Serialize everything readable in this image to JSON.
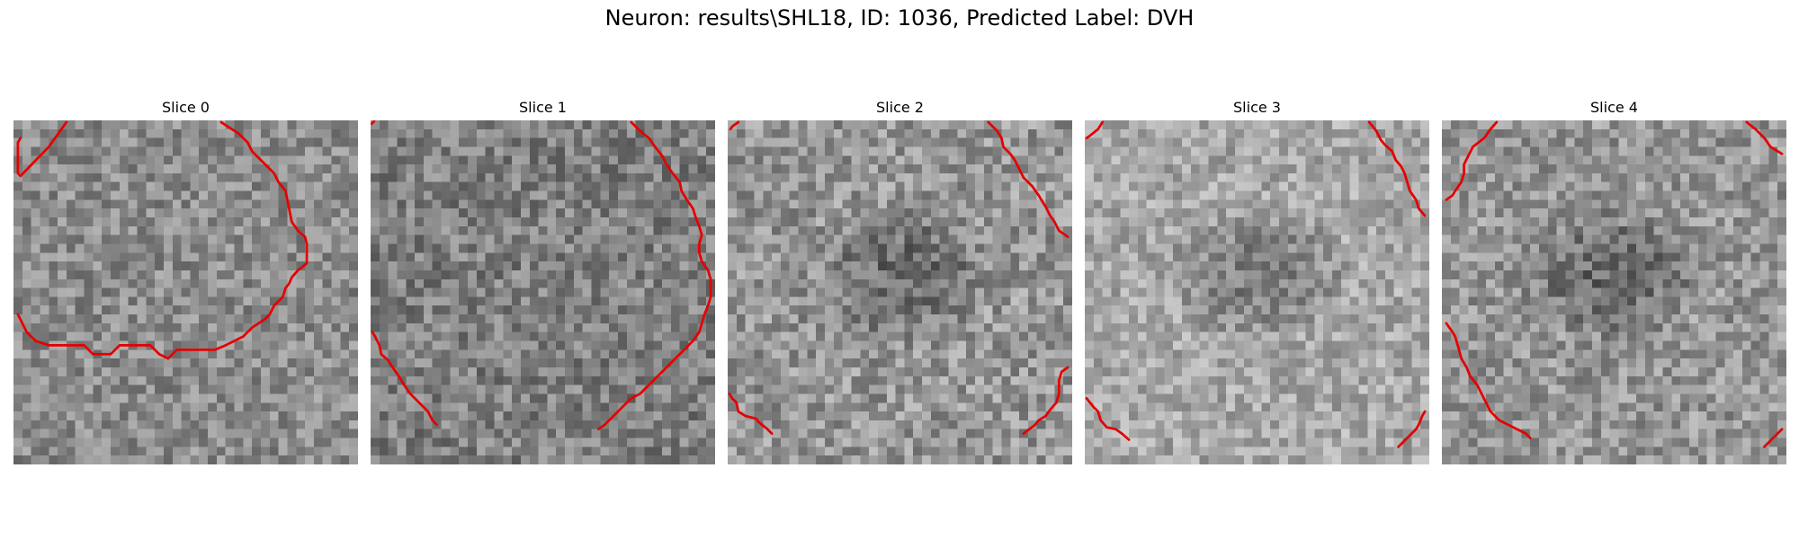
{
  "figure": {
    "title": "Neuron: results\\SHL18, ID: 1036, Predicted Label: DVH"
  },
  "contour_color": "#e60000",
  "slices": [
    {
      "label": "Slice 0",
      "mean_gray": 140,
      "contrast": 40,
      "dark_center": false,
      "contours": [
        [
          [
            0.8,
            2.0
          ],
          [
            0.5,
            2.5
          ],
          [
            0.5,
            6.0
          ],
          [
            0.8,
            6.3
          ],
          [
            4.0,
            3.0
          ],
          [
            6.0,
            0.2
          ]
        ],
        [
          [
            23.5,
            0.2
          ],
          [
            25.5,
            1.5
          ],
          [
            26.5,
            2.5
          ],
          [
            27.0,
            3.5
          ],
          [
            27.5,
            4.0
          ],
          [
            28.5,
            5.0
          ],
          [
            29.5,
            6.0
          ],
          [
            30.0,
            7.0
          ],
          [
            30.8,
            8.0
          ],
          [
            31.0,
            9.0
          ],
          [
            31.2,
            10.0
          ],
          [
            31.5,
            11.5
          ],
          [
            32.2,
            12.5
          ],
          [
            33.0,
            13.2
          ],
          [
            33.2,
            14.0
          ],
          [
            33.2,
            16.2
          ],
          [
            32.2,
            17.0
          ],
          [
            31.5,
            17.8
          ],
          [
            31.2,
            18.5
          ],
          [
            30.8,
            19.0
          ],
          [
            30.5,
            20.0
          ],
          [
            29.5,
            21.0
          ],
          [
            29.0,
            22.0
          ],
          [
            28.5,
            22.5
          ],
          [
            27.0,
            23.5
          ],
          [
            26.0,
            24.5
          ],
          [
            25.0,
            25.0
          ],
          [
            24.0,
            25.5
          ],
          [
            22.8,
            26.0
          ],
          [
            18.5,
            26.0
          ],
          [
            17.5,
            27.0
          ],
          [
            16.5,
            26.5
          ],
          [
            15.5,
            25.5
          ],
          [
            14.0,
            25.5
          ],
          [
            12.0,
            25.5
          ],
          [
            11.0,
            26.5
          ],
          [
            9.0,
            26.5
          ],
          [
            8.0,
            25.5
          ],
          [
            7.5,
            25.5
          ],
          [
            5.5,
            25.5
          ],
          [
            4.0,
            25.5
          ],
          [
            2.5,
            25.0
          ],
          [
            1.5,
            24.0
          ],
          [
            1.0,
            23.0
          ],
          [
            0.5,
            22.0
          ]
        ]
      ]
    },
    {
      "label": "Slice 1",
      "mean_gray": 128,
      "contrast": 42,
      "dark_center": false,
      "contours": [
        [
          [
            0.1,
            0.4
          ],
          [
            0.4,
            0.1
          ]
        ],
        [
          [
            29.5,
            0.2
          ],
          [
            30.5,
            1.2
          ],
          [
            31.5,
            2.0
          ],
          [
            32.2,
            3.0
          ],
          [
            33.0,
            4.0
          ],
          [
            33.5,
            5.0
          ],
          [
            34.2,
            6.0
          ],
          [
            35.0,
            7.0
          ],
          [
            35.2,
            8.0
          ],
          [
            35.8,
            9.0
          ],
          [
            36.5,
            10.0
          ],
          [
            36.8,
            11.0
          ],
          [
            37.2,
            12.0
          ],
          [
            37.5,
            13.0
          ],
          [
            37.2,
            14.0
          ],
          [
            37.2,
            15.0
          ],
          [
            37.5,
            16.0
          ],
          [
            38.2,
            17.0
          ],
          [
            38.5,
            18.0
          ],
          [
            38.5,
            20.0
          ],
          [
            38.2,
            21.0
          ],
          [
            37.8,
            22.0
          ],
          [
            37.5,
            23.0
          ],
          [
            37.2,
            24.0
          ],
          [
            36.5,
            25.0
          ],
          [
            35.5,
            26.0
          ],
          [
            34.5,
            27.0
          ],
          [
            33.5,
            28.0
          ],
          [
            32.5,
            29.0
          ],
          [
            31.5,
            30.0
          ],
          [
            30.5,
            31.0
          ],
          [
            29.5,
            31.5
          ],
          [
            28.5,
            32.5
          ],
          [
            27.5,
            33.5
          ],
          [
            26.5,
            34.5
          ],
          [
            25.8,
            35.0
          ]
        ],
        [
          [
            0.2,
            24.0
          ],
          [
            0.5,
            24.5
          ],
          [
            1.0,
            25.5
          ],
          [
            1.2,
            26.5
          ],
          [
            2.0,
            27.2
          ],
          [
            2.5,
            28.0
          ],
          [
            3.2,
            29.0
          ],
          [
            3.8,
            30.0
          ],
          [
            4.5,
            31.0
          ],
          [
            5.5,
            32.0
          ],
          [
            6.5,
            33.0
          ],
          [
            7.0,
            34.0
          ],
          [
            7.5,
            34.5
          ]
        ]
      ]
    },
    {
      "label": "Slice 2",
      "mean_gray": 150,
      "contrast": 44,
      "dark_center": true,
      "contours": [
        [
          [
            0.3,
            1.0
          ],
          [
            0.5,
            0.7
          ],
          [
            1.2,
            0.2
          ]
        ],
        [
          [
            29.5,
            0.2
          ],
          [
            30.5,
            1.2
          ],
          [
            31.0,
            2.0
          ],
          [
            31.2,
            3.0
          ],
          [
            32.0,
            3.8
          ],
          [
            32.5,
            4.5
          ],
          [
            33.0,
            5.5
          ],
          [
            33.5,
            6.5
          ],
          [
            34.5,
            7.5
          ],
          [
            35.2,
            8.5
          ],
          [
            35.5,
            9.0
          ],
          [
            36.0,
            9.8
          ],
          [
            36.5,
            10.8
          ],
          [
            37.0,
            11.5
          ],
          [
            37.5,
            12.5
          ],
          [
            38.5,
            13.2
          ]
        ],
        [
          [
            38.5,
            28.0
          ],
          [
            37.8,
            28.5
          ],
          [
            37.5,
            29.5
          ],
          [
            37.5,
            31.0
          ],
          [
            37.2,
            32.0
          ],
          [
            36.5,
            32.8
          ],
          [
            36.0,
            33.5
          ],
          [
            35.2,
            34.0
          ],
          [
            34.8,
            34.5
          ],
          [
            33.5,
            35.5
          ]
        ],
        [
          [
            0.2,
            31.0
          ],
          [
            0.5,
            31.5
          ],
          [
            1.0,
            32.0
          ],
          [
            1.2,
            33.0
          ],
          [
            2.0,
            33.5
          ],
          [
            3.2,
            33.8
          ],
          [
            3.5,
            34.2
          ],
          [
            4.5,
            35.0
          ],
          [
            5.0,
            35.5
          ]
        ]
      ]
    },
    {
      "label": "Slice 3",
      "mean_gray": 168,
      "contrast": 38,
      "dark_center": true,
      "contours": [
        [
          [
            0.2,
            2.0
          ],
          [
            0.5,
            1.8
          ],
          [
            1.5,
            1.0
          ],
          [
            2.0,
            0.2
          ]
        ],
        [
          [
            32.2,
            0.2
          ],
          [
            33.0,
            1.2
          ],
          [
            33.5,
            2.2
          ],
          [
            34.0,
            2.8
          ],
          [
            34.8,
            3.5
          ],
          [
            35.2,
            4.5
          ],
          [
            35.8,
            5.2
          ],
          [
            36.2,
            6.0
          ],
          [
            36.5,
            7.0
          ],
          [
            36.8,
            8.0
          ],
          [
            37.5,
            9.0
          ],
          [
            37.8,
            10.0
          ],
          [
            38.5,
            10.8
          ]
        ],
        [
          [
            38.5,
            33.0
          ],
          [
            38.2,
            33.5
          ],
          [
            37.8,
            34.5
          ],
          [
            37.5,
            35.0
          ],
          [
            35.5,
            37.0
          ]
        ],
        [
          [
            0.2,
            31.5
          ],
          [
            1.0,
            32.5
          ],
          [
            1.5,
            33.0
          ],
          [
            1.8,
            34.0
          ],
          [
            2.5,
            34.8
          ],
          [
            3.5,
            35.0
          ],
          [
            4.2,
            35.5
          ],
          [
            5.0,
            36.2
          ]
        ]
      ]
    },
    {
      "label": "Slice 4",
      "mean_gray": 150,
      "contrast": 42,
      "dark_center": true,
      "contours": [
        [
          [
            6.2,
            0.2
          ],
          [
            5.5,
            1.0
          ],
          [
            4.8,
            2.0
          ],
          [
            3.5,
            3.0
          ],
          [
            3.0,
            4.0
          ],
          [
            2.5,
            5.0
          ],
          [
            2.5,
            6.0
          ],
          [
            2.2,
            7.0
          ],
          [
            1.5,
            8.0
          ],
          [
            1.2,
            8.5
          ],
          [
            0.5,
            9.0
          ]
        ],
        [
          [
            34.5,
            0.2
          ],
          [
            35.5,
            1.0
          ],
          [
            36.5,
            2.0
          ],
          [
            37.2,
            3.0
          ],
          [
            38.5,
            3.8
          ]
        ],
        [
          [
            0.5,
            23.0
          ],
          [
            1.2,
            24.0
          ],
          [
            1.5,
            24.5
          ],
          [
            1.8,
            25.5
          ],
          [
            2.2,
            27.0
          ],
          [
            2.8,
            28.0
          ],
          [
            3.2,
            29.0
          ],
          [
            4.0,
            30.0
          ],
          [
            4.5,
            31.0
          ],
          [
            5.0,
            32.0
          ],
          [
            5.5,
            33.0
          ],
          [
            6.5,
            34.0
          ],
          [
            7.5,
            34.5
          ],
          [
            8.5,
            35.0
          ],
          [
            9.5,
            35.5
          ],
          [
            10.0,
            36.0
          ]
        ],
        [
          [
            38.5,
            35.0
          ],
          [
            37.5,
            36.0
          ],
          [
            36.5,
            37.0
          ]
        ]
      ]
    }
  ]
}
